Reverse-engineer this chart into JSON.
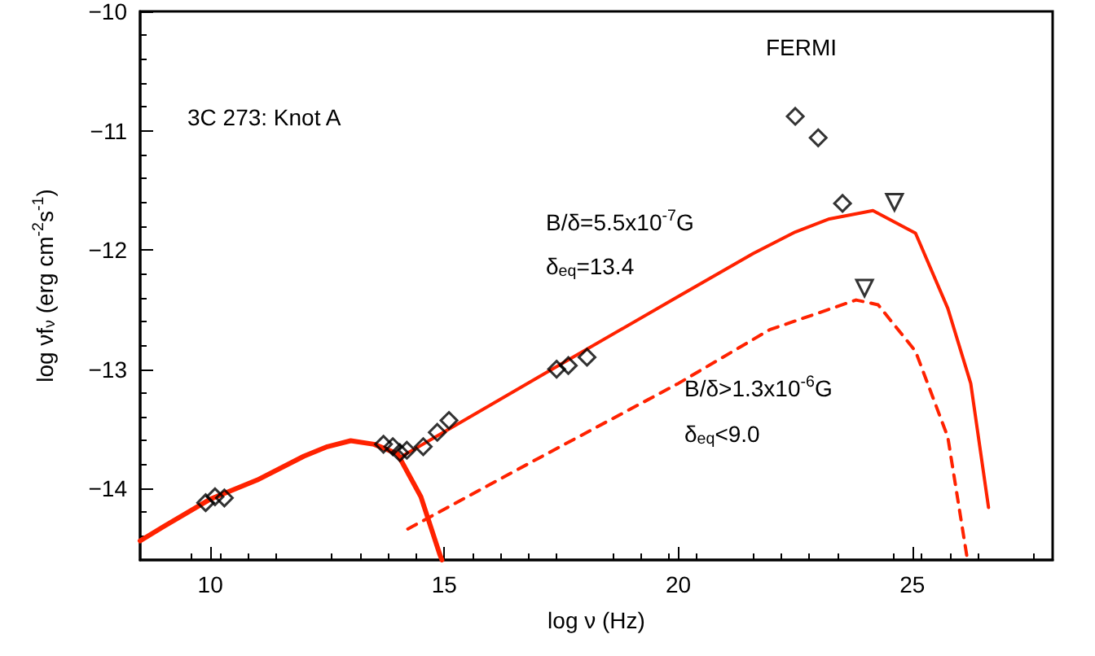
{
  "chart_data": {
    "type": "line",
    "xlabel": "log ν (Hz)",
    "ylabel": "log νf$_{ν}$ (erg cm$^{-2}$s$^{-1}$)",
    "xlim": [
      8.5,
      28
    ],
    "xticks": [
      10,
      15,
      20,
      25
    ],
    "ylim": [
      -14.6,
      -10
    ],
    "yticks": [
      -14,
      -13,
      -12,
      -11,
      -10
    ],
    "grid": false,
    "annotations": [
      "3C 273: Knot A",
      "FERMI",
      "B/δ=5.5x10$^{-7}$G",
      "δ$_{eq}$=13.4",
      "B/δ>1.3x10$^{-6}$G",
      "δ$_{eq}$<9.0"
    ],
    "series": [
      {
        "type": "scatter",
        "marker": "diamond",
        "color": "#000000",
        "x": [
          9.9,
          10.1,
          10.3,
          13.7,
          13.9,
          14.05,
          14.2,
          14.55,
          14.85,
          15.1,
          17.4,
          17.65,
          18.05,
          22.5,
          22.99,
          23.51
        ],
        "values": [
          -14.12,
          -14.07,
          -14.08,
          -13.63,
          -13.65,
          -13.7,
          -13.68,
          -13.65,
          -13.53,
          -13.43,
          -13.0,
          -12.97,
          -12.9,
          -10.88,
          -11.06,
          -11.61
        ]
      },
      {
        "type": "scatter",
        "marker": "triangle",
        "color": "#000000",
        "x": [
          24.62,
          23.98
        ],
        "values": [
          -11.6,
          -12.32
        ]
      },
      {
        "marker": "none",
        "line_style": "solid",
        "color": "#ff2200",
        "x": [
          8.5,
          9,
          10,
          11,
          12,
          12.5,
          13,
          13.5,
          14,
          14.5,
          14.9,
          14.95
        ],
        "values": [
          -14.44,
          -14.32,
          -14.09,
          -13.93,
          -13.73,
          -13.65,
          -13.6,
          -13.63,
          -13.71,
          -14.07,
          -14.55,
          -14.6
        ]
      },
      {
        "marker": "none",
        "line_style": "solid",
        "color": "#ff2200",
        "x": [
          14.1,
          17.0,
          20,
          21.6,
          22.5,
          23.23,
          24.16,
          25.07,
          25.76,
          26.25,
          26.63
        ],
        "values": [
          -13.73,
          -13.07,
          -12.39,
          -12.03,
          -11.85,
          -11.74,
          -11.67,
          -11.86,
          -12.49,
          -13.12,
          -14.16
        ]
      },
      {
        "marker": "none",
        "line_style": "dashed",
        "color": "#ff2200",
        "x": [
          14.22,
          17.0,
          20,
          21.95,
          23.8,
          24.27,
          25.07,
          25.76,
          26.18
        ],
        "values": [
          -14.34,
          -13.75,
          -13.12,
          -12.67,
          -12.42,
          -12.46,
          -12.85,
          -13.57,
          -14.6
        ]
      }
    ]
  }
}
